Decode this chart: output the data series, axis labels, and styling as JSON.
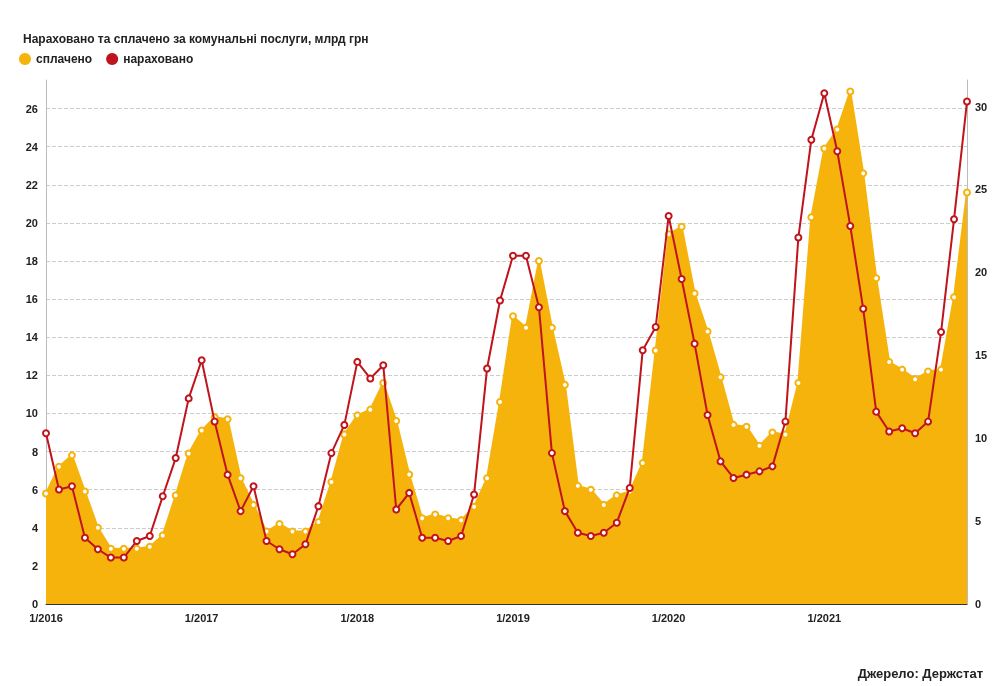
{
  "chart_data": {
    "type": "line",
    "title": "Нараховано та сплачено за комунальні послуги, млрд грн",
    "annotations": [
      "Джерело: Держстат"
    ],
    "categories": [
      "1/2016",
      null,
      null,
      null,
      null,
      null,
      null,
      null,
      null,
      null,
      null,
      null,
      "1/2017",
      null,
      null,
      null,
      null,
      null,
      null,
      null,
      null,
      null,
      null,
      null,
      "1/2018",
      null,
      null,
      null,
      null,
      null,
      null,
      null,
      null,
      null,
      null,
      null,
      "1/2019",
      null,
      null,
      null,
      null,
      null,
      null,
      null,
      null,
      null,
      null,
      null,
      "1/2020",
      null,
      null,
      null,
      null,
      null,
      null,
      null,
      null,
      null,
      null,
      null,
      "1/2021",
      null,
      null,
      null,
      null,
      null,
      null,
      null,
      null,
      null,
      null,
      null
    ],
    "series": [
      {
        "name": "сплачено",
        "type": "area",
        "axis": "y",
        "color": "#f5b30c",
        "values": [
          5.8,
          7.2,
          7.8,
          5.9,
          4.0,
          2.9,
          2.9,
          2.9,
          3.0,
          3.6,
          5.7,
          7.9,
          9.1,
          9.8,
          9.7,
          6.6,
          5.2,
          3.8,
          4.2,
          3.8,
          3.8,
          4.3,
          6.4,
          8.9,
          9.9,
          10.2,
          11.6,
          9.6,
          6.8,
          4.5,
          4.7,
          4.5,
          4.4,
          5.1,
          6.6,
          10.6,
          15.1,
          14.5,
          18.0,
          14.5,
          11.5,
          6.2,
          6.0,
          5.2,
          5.7,
          5.9,
          7.4,
          13.3,
          19.4,
          19.8,
          16.3,
          14.3,
          11.9,
          9.4,
          9.3,
          8.3,
          9.0,
          8.9,
          11.6,
          20.3,
          23.9,
          24.9,
          26.9,
          22.6,
          17.1,
          12.7,
          12.3,
          11.8,
          12.2,
          12.3,
          16.1,
          21.6
        ]
      },
      {
        "name": "нараховано",
        "type": "line",
        "axis": "y2",
        "color": "#c0141c",
        "values": [
          10.3,
          6.9,
          7.1,
          4.0,
          3.3,
          2.8,
          2.8,
          3.8,
          4.1,
          6.5,
          8.8,
          12.4,
          14.7,
          11.0,
          7.8,
          5.6,
          7.1,
          3.8,
          3.3,
          3.0,
          3.6,
          5.9,
          9.1,
          10.8,
          14.6,
          13.6,
          14.4,
          5.7,
          6.7,
          4.0,
          4.0,
          3.8,
          4.1,
          6.6,
          14.2,
          18.3,
          21.0,
          21.0,
          17.9,
          9.1,
          5.6,
          4.3,
          4.1,
          4.3,
          4.9,
          7.0,
          15.3,
          16.7,
          23.4,
          19.6,
          15.7,
          11.4,
          8.6,
          7.6,
          7.8,
          8.0,
          8.3,
          11.0,
          22.1,
          28.0,
          30.8,
          27.3,
          22.8,
          17.8,
          11.6,
          10.4,
          10.6,
          10.3,
          11.0,
          16.4,
          23.2,
          30.3
        ]
      }
    ],
    "ylim": [
      0,
      27.5
    ],
    "yticks": [
      0,
      2,
      4,
      6,
      8,
      10,
      12,
      14,
      16,
      18,
      20,
      22,
      24,
      26
    ],
    "y2lim": [
      0,
      31.6
    ],
    "y2ticks": [
      0,
      5,
      10,
      15,
      20,
      25,
      30
    ],
    "grid": "y",
    "legend": "top left",
    "marker": "circle"
  }
}
